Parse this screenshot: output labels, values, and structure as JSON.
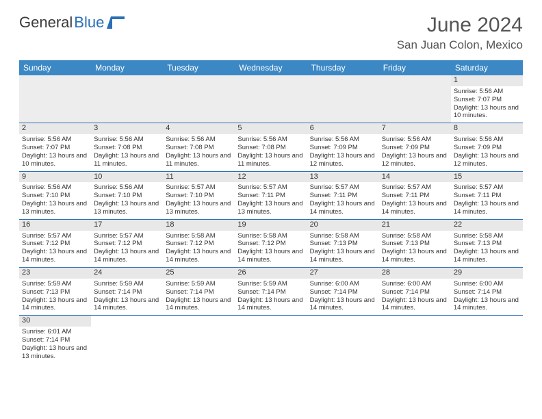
{
  "logo": {
    "text1": "General",
    "text2": "Blue"
  },
  "title": {
    "month": "June 2024",
    "location": "San Juan Colon, Mexico"
  },
  "colors": {
    "headerBg": "#3b88c5",
    "headerText": "#ffffff",
    "border": "#2b6fb5",
    "dayStrip": "#e8e8e8",
    "logoBlue": "#2b6fb5"
  },
  "weekdays": [
    "Sunday",
    "Monday",
    "Tuesday",
    "Wednesday",
    "Thursday",
    "Friday",
    "Saturday"
  ],
  "startOffset": 6,
  "days": [
    {
      "n": "1",
      "sunrise": "Sunrise: 5:56 AM",
      "sunset": "Sunset: 7:07 PM",
      "daylight": "Daylight: 13 hours and 10 minutes."
    },
    {
      "n": "2",
      "sunrise": "Sunrise: 5:56 AM",
      "sunset": "Sunset: 7:07 PM",
      "daylight": "Daylight: 13 hours and 10 minutes."
    },
    {
      "n": "3",
      "sunrise": "Sunrise: 5:56 AM",
      "sunset": "Sunset: 7:08 PM",
      "daylight": "Daylight: 13 hours and 11 minutes."
    },
    {
      "n": "4",
      "sunrise": "Sunrise: 5:56 AM",
      "sunset": "Sunset: 7:08 PM",
      "daylight": "Daylight: 13 hours and 11 minutes."
    },
    {
      "n": "5",
      "sunrise": "Sunrise: 5:56 AM",
      "sunset": "Sunset: 7:08 PM",
      "daylight": "Daylight: 13 hours and 11 minutes."
    },
    {
      "n": "6",
      "sunrise": "Sunrise: 5:56 AM",
      "sunset": "Sunset: 7:09 PM",
      "daylight": "Daylight: 13 hours and 12 minutes."
    },
    {
      "n": "7",
      "sunrise": "Sunrise: 5:56 AM",
      "sunset": "Sunset: 7:09 PM",
      "daylight": "Daylight: 13 hours and 12 minutes."
    },
    {
      "n": "8",
      "sunrise": "Sunrise: 5:56 AM",
      "sunset": "Sunset: 7:09 PM",
      "daylight": "Daylight: 13 hours and 12 minutes."
    },
    {
      "n": "9",
      "sunrise": "Sunrise: 5:56 AM",
      "sunset": "Sunset: 7:10 PM",
      "daylight": "Daylight: 13 hours and 13 minutes."
    },
    {
      "n": "10",
      "sunrise": "Sunrise: 5:56 AM",
      "sunset": "Sunset: 7:10 PM",
      "daylight": "Daylight: 13 hours and 13 minutes."
    },
    {
      "n": "11",
      "sunrise": "Sunrise: 5:57 AM",
      "sunset": "Sunset: 7:10 PM",
      "daylight": "Daylight: 13 hours and 13 minutes."
    },
    {
      "n": "12",
      "sunrise": "Sunrise: 5:57 AM",
      "sunset": "Sunset: 7:11 PM",
      "daylight": "Daylight: 13 hours and 13 minutes."
    },
    {
      "n": "13",
      "sunrise": "Sunrise: 5:57 AM",
      "sunset": "Sunset: 7:11 PM",
      "daylight": "Daylight: 13 hours and 14 minutes."
    },
    {
      "n": "14",
      "sunrise": "Sunrise: 5:57 AM",
      "sunset": "Sunset: 7:11 PM",
      "daylight": "Daylight: 13 hours and 14 minutes."
    },
    {
      "n": "15",
      "sunrise": "Sunrise: 5:57 AM",
      "sunset": "Sunset: 7:11 PM",
      "daylight": "Daylight: 13 hours and 14 minutes."
    },
    {
      "n": "16",
      "sunrise": "Sunrise: 5:57 AM",
      "sunset": "Sunset: 7:12 PM",
      "daylight": "Daylight: 13 hours and 14 minutes."
    },
    {
      "n": "17",
      "sunrise": "Sunrise: 5:57 AM",
      "sunset": "Sunset: 7:12 PM",
      "daylight": "Daylight: 13 hours and 14 minutes."
    },
    {
      "n": "18",
      "sunrise": "Sunrise: 5:58 AM",
      "sunset": "Sunset: 7:12 PM",
      "daylight": "Daylight: 13 hours and 14 minutes."
    },
    {
      "n": "19",
      "sunrise": "Sunrise: 5:58 AM",
      "sunset": "Sunset: 7:12 PM",
      "daylight": "Daylight: 13 hours and 14 minutes."
    },
    {
      "n": "20",
      "sunrise": "Sunrise: 5:58 AM",
      "sunset": "Sunset: 7:13 PM",
      "daylight": "Daylight: 13 hours and 14 minutes."
    },
    {
      "n": "21",
      "sunrise": "Sunrise: 5:58 AM",
      "sunset": "Sunset: 7:13 PM",
      "daylight": "Daylight: 13 hours and 14 minutes."
    },
    {
      "n": "22",
      "sunrise": "Sunrise: 5:58 AM",
      "sunset": "Sunset: 7:13 PM",
      "daylight": "Daylight: 13 hours and 14 minutes."
    },
    {
      "n": "23",
      "sunrise": "Sunrise: 5:59 AM",
      "sunset": "Sunset: 7:13 PM",
      "daylight": "Daylight: 13 hours and 14 minutes."
    },
    {
      "n": "24",
      "sunrise": "Sunrise: 5:59 AM",
      "sunset": "Sunset: 7:14 PM",
      "daylight": "Daylight: 13 hours and 14 minutes."
    },
    {
      "n": "25",
      "sunrise": "Sunrise: 5:59 AM",
      "sunset": "Sunset: 7:14 PM",
      "daylight": "Daylight: 13 hours and 14 minutes."
    },
    {
      "n": "26",
      "sunrise": "Sunrise: 5:59 AM",
      "sunset": "Sunset: 7:14 PM",
      "daylight": "Daylight: 13 hours and 14 minutes."
    },
    {
      "n": "27",
      "sunrise": "Sunrise: 6:00 AM",
      "sunset": "Sunset: 7:14 PM",
      "daylight": "Daylight: 13 hours and 14 minutes."
    },
    {
      "n": "28",
      "sunrise": "Sunrise: 6:00 AM",
      "sunset": "Sunset: 7:14 PM",
      "daylight": "Daylight: 13 hours and 14 minutes."
    },
    {
      "n": "29",
      "sunrise": "Sunrise: 6:00 AM",
      "sunset": "Sunset: 7:14 PM",
      "daylight": "Daylight: 13 hours and 14 minutes."
    },
    {
      "n": "30",
      "sunrise": "Sunrise: 6:01 AM",
      "sunset": "Sunset: 7:14 PM",
      "daylight": "Daylight: 13 hours and 13 minutes."
    }
  ]
}
